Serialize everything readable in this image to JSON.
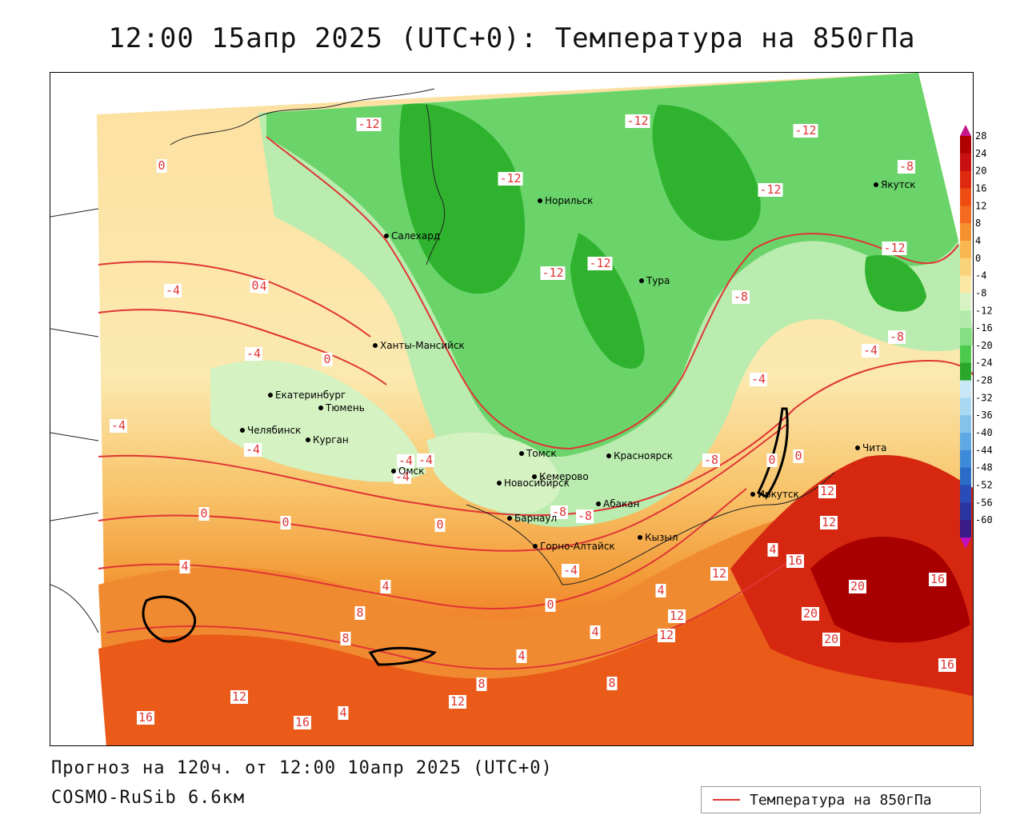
{
  "title": "12:00 15апр 2025 (UTC+0): Температура на 850гПа",
  "footer": {
    "forecast": "Прогноз на 120ч. от 12:00 10апр 2025 (UTC+0)",
    "model": "COSMO-RuSib 6.6км"
  },
  "legend": {
    "label": "Температура на 850гПа",
    "color": "#e03535"
  },
  "colorbar": {
    "ticks": [
      "28",
      "24",
      "20",
      "16",
      "12",
      "8",
      "4",
      "0",
      "-4",
      "-8",
      "-12",
      "-16",
      "-20",
      "-24",
      "-28",
      "-32",
      "-36",
      "-40",
      "-44",
      "-48",
      "-52",
      "-56",
      "-60"
    ],
    "colors": [
      "#b00000",
      "#c81010",
      "#e02a10",
      "#ef4c12",
      "#f46a20",
      "#f6922e",
      "#f8b550",
      "#fad27a",
      "#fbe7a2",
      "#d8f3c4",
      "#b3ecaa",
      "#84df83",
      "#4cca4c",
      "#2aa62a",
      "#c8e8f8",
      "#a8d8f2",
      "#84c2ec",
      "#5ea8e4",
      "#3c8ad8",
      "#2a6cc8",
      "#2a4cb8",
      "#2a34a0",
      "#3a1c88"
    ]
  },
  "cities": [
    {
      "name": "Салехард"
    },
    {
      "name": "Норильск"
    },
    {
      "name": "Якутск"
    },
    {
      "name": "Тура"
    },
    {
      "name": "Ханты-Мансийск"
    },
    {
      "name": "Екатеринбург"
    },
    {
      "name": "Тюмень"
    },
    {
      "name": "Челябинск"
    },
    {
      "name": "Курган"
    },
    {
      "name": "Омск"
    },
    {
      "name": "Новосибирск"
    },
    {
      "name": "Томск"
    },
    {
      "name": "Кемерово"
    },
    {
      "name": "Красноярск"
    },
    {
      "name": "Абакан"
    },
    {
      "name": "Барнаул"
    },
    {
      "name": "Горно-Алтайск"
    },
    {
      "name": "Кызыл"
    },
    {
      "name": "Иркутск"
    },
    {
      "name": "Чита"
    }
  ],
  "isotherm_labels": [
    "-12",
    "-12",
    "-12",
    "-12",
    "-8",
    "-12",
    "-12",
    "-12",
    "-12",
    "-8",
    "-8",
    "-4",
    "-4",
    "0",
    "0",
    "-4",
    "4",
    "-4",
    "0",
    "-4",
    "-4",
    "-4",
    "-8",
    "-8",
    "0",
    "-4",
    "0",
    "0",
    "0",
    "0",
    "-4",
    "4",
    "4",
    "4",
    "0",
    "4",
    "4",
    "4",
    "8",
    "8",
    "8",
    "12",
    "12",
    "12",
    "12",
    "12",
    "16",
    "16",
    "16",
    "16",
    "20",
    "20",
    "20",
    "12",
    "16",
    "12",
    "8",
    "4",
    "-8",
    "-4"
  ]
}
